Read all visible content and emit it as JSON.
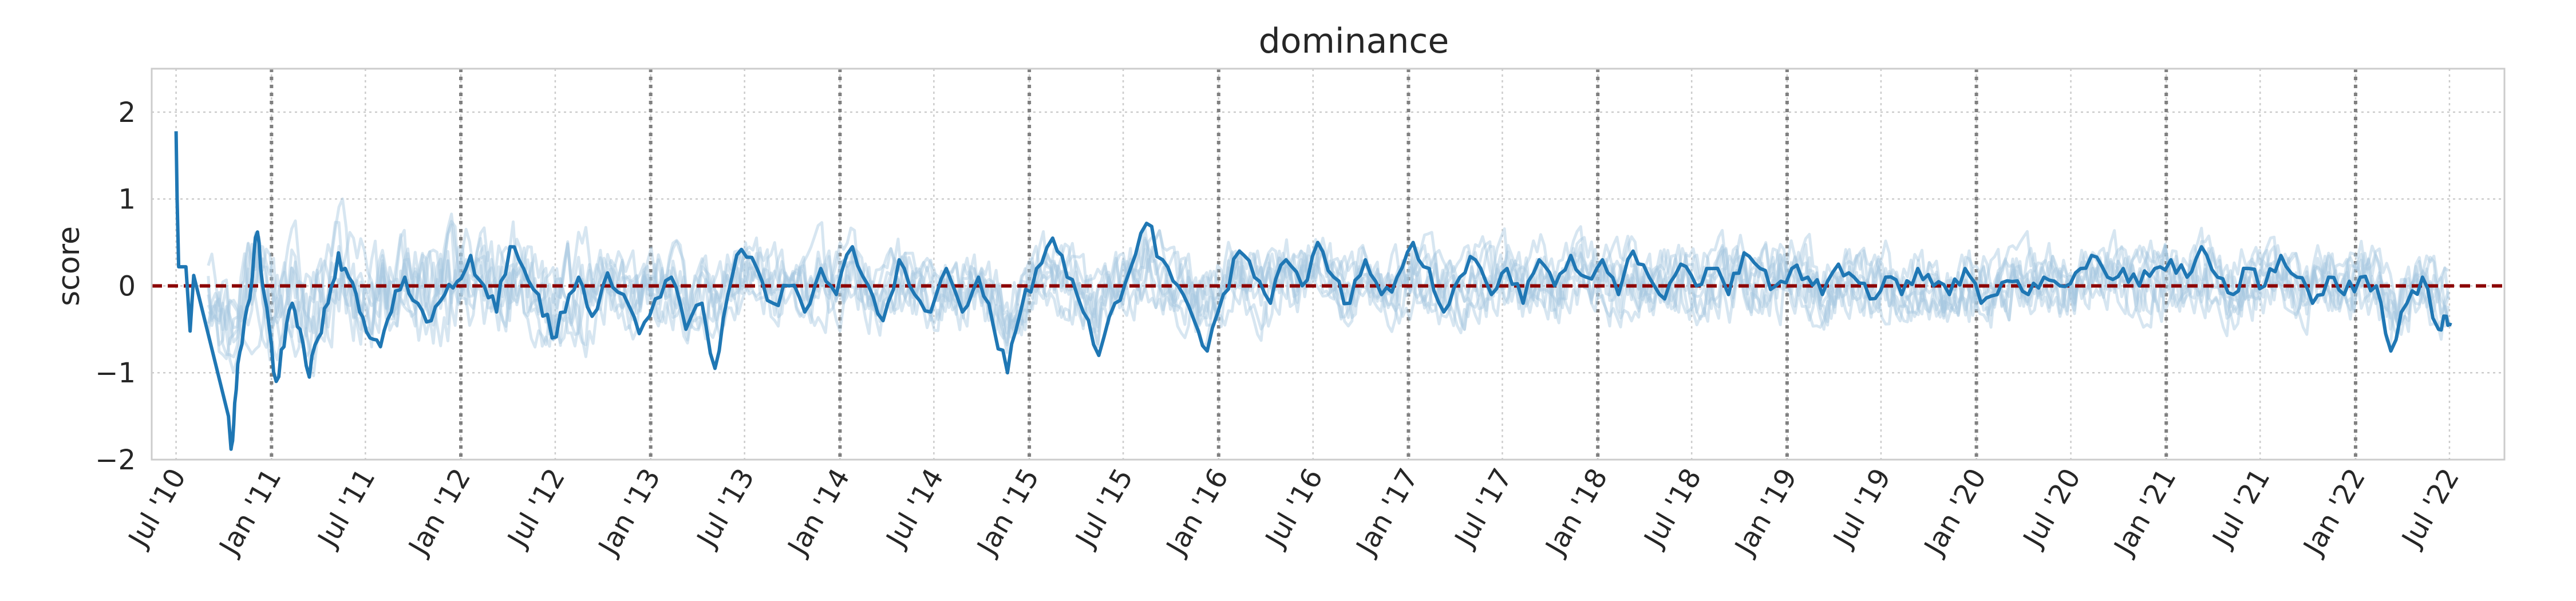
{
  "chart_data": {
    "type": "line",
    "title": "dominance",
    "xlabel": "",
    "ylabel": "score",
    "ylim": [
      -2,
      2.5
    ],
    "xlim": [
      "2010-05-15",
      "2022-10-15"
    ],
    "yticks": [
      -2,
      -1,
      0,
      1,
      2
    ],
    "ytick_labels": [
      "−2",
      "−1",
      "0",
      "1",
      "2"
    ],
    "xticks": [
      {
        "date": "2010-07-01",
        "label": "Jul '10"
      },
      {
        "date": "2011-01-01",
        "label": "Jan '11"
      },
      {
        "date": "2011-07-01",
        "label": "Jul '11"
      },
      {
        "date": "2012-01-01",
        "label": "Jan '12"
      },
      {
        "date": "2012-07-01",
        "label": "Jul '12"
      },
      {
        "date": "2013-01-01",
        "label": "Jan '13"
      },
      {
        "date": "2013-07-01",
        "label": "Jul '13"
      },
      {
        "date": "2014-01-01",
        "label": "Jan '14"
      },
      {
        "date": "2014-07-01",
        "label": "Jul '14"
      },
      {
        "date": "2015-01-01",
        "label": "Jan '15"
      },
      {
        "date": "2015-07-01",
        "label": "Jul '15"
      },
      {
        "date": "2016-01-01",
        "label": "Jan '16"
      },
      {
        "date": "2016-07-01",
        "label": "Jul '16"
      },
      {
        "date": "2017-01-01",
        "label": "Jan '17"
      },
      {
        "date": "2017-07-01",
        "label": "Jul '17"
      },
      {
        "date": "2018-01-01",
        "label": "Jan '18"
      },
      {
        "date": "2018-07-01",
        "label": "Jul '18"
      },
      {
        "date": "2019-01-01",
        "label": "Jan '19"
      },
      {
        "date": "2019-07-01",
        "label": "Jul '19"
      },
      {
        "date": "2020-01-01",
        "label": "Jan '20"
      },
      {
        "date": "2020-07-01",
        "label": "Jul '20"
      },
      {
        "date": "2021-01-01",
        "label": "Jan '21"
      },
      {
        "date": "2021-07-01",
        "label": "Jul '21"
      },
      {
        "date": "2022-01-01",
        "label": "Jan '22"
      },
      {
        "date": "2022-07-01",
        "label": "Jul '22"
      }
    ],
    "vlines": [
      "2011-01-01",
      "2012-01-01",
      "2013-01-01",
      "2014-01-01",
      "2015-01-01",
      "2016-01-01",
      "2017-01-01",
      "2018-01-01",
      "2019-01-01",
      "2020-01-01",
      "2021-01-01",
      "2022-01-01"
    ],
    "hline": 0,
    "grid": true,
    "colors": {
      "main_series": "#1f77b4",
      "background_series": "#a6c8e0",
      "zero_line": "#8b0000",
      "year_lines": "#808080",
      "grid": "#cccccc",
      "frame": "#cccccc"
    },
    "background_series_count": 8,
    "main_series": {
      "points": [
        [
          "2010-07-01",
          1.78
        ],
        [
          "2010-07-03",
          1.0
        ],
        [
          "2010-07-06",
          0.22
        ],
        [
          "2010-07-20",
          0.22
        ],
        [
          "2010-07-28",
          -0.52
        ],
        [
          "2010-08-04",
          0.12
        ],
        [
          "2010-10-10",
          -1.5
        ],
        [
          "2010-10-15",
          -1.88
        ],
        [
          "2010-10-20",
          -1.6
        ],
        [
          "2010-10-28",
          -0.9
        ],
        [
          "2010-11-10",
          -0.4
        ],
        [
          "2010-11-25",
          0.1
        ],
        [
          "2010-12-05",
          0.62
        ],
        [
          "2010-12-15",
          0.0
        ],
        [
          "2010-12-28",
          -0.5
        ],
        [
          "2011-01-10",
          -1.1
        ],
        [
          "2011-01-25",
          -0.7
        ],
        [
          "2011-02-10",
          -0.2
        ],
        [
          "2011-02-25",
          -0.5
        ],
        [
          "2011-03-15",
          -1.05
        ],
        [
          "2011-04-01",
          -0.6
        ],
        [
          "2011-04-20",
          -0.2
        ],
        [
          "2011-05-10",
          0.38
        ],
        [
          "2011-05-30",
          0.1
        ],
        [
          "2011-06-20",
          -0.3
        ],
        [
          "2011-07-10",
          -0.6
        ],
        [
          "2011-07-30",
          -0.7
        ],
        [
          "2011-08-20",
          -0.3
        ],
        [
          "2011-09-15",
          0.1
        ],
        [
          "2011-10-10",
          -0.2
        ],
        [
          "2011-11-05",
          -0.4
        ],
        [
          "2011-12-01",
          -0.1
        ],
        [
          "2011-12-25",
          0.05
        ],
        [
          "2012-01-20",
          0.35
        ],
        [
          "2012-02-15",
          0.0
        ],
        [
          "2012-03-10",
          -0.3
        ],
        [
          "2012-04-05",
          0.45
        ],
        [
          "2012-05-01",
          0.2
        ],
        [
          "2012-05-30",
          -0.1
        ],
        [
          "2012-06-25",
          -0.6
        ],
        [
          "2012-07-20",
          -0.3
        ],
        [
          "2012-08-15",
          0.1
        ],
        [
          "2012-09-10",
          -0.35
        ],
        [
          "2012-10-10",
          0.15
        ],
        [
          "2012-11-10",
          -0.1
        ],
        [
          "2012-12-10",
          -0.55
        ],
        [
          "2013-01-10",
          -0.15
        ],
        [
          "2013-02-10",
          0.1
        ],
        [
          "2013-03-10",
          -0.5
        ],
        [
          "2013-04-10",
          -0.2
        ],
        [
          "2013-05-05",
          -0.95
        ],
        [
          "2013-05-30",
          -0.1
        ],
        [
          "2013-06-25",
          0.42
        ],
        [
          "2013-07-25",
          0.2
        ],
        [
          "2013-08-25",
          -0.2
        ],
        [
          "2013-09-25",
          0.0
        ],
        [
          "2013-10-25",
          -0.3
        ],
        [
          "2013-11-25",
          0.2
        ],
        [
          "2013-12-25",
          -0.1
        ],
        [
          "2014-01-25",
          0.45
        ],
        [
          "2014-02-25",
          0.0
        ],
        [
          "2014-03-25",
          -0.4
        ],
        [
          "2014-04-25",
          0.3
        ],
        [
          "2014-05-25",
          -0.1
        ],
        [
          "2014-06-25",
          -0.3
        ],
        [
          "2014-07-25",
          0.2
        ],
        [
          "2014-08-25",
          -0.3
        ],
        [
          "2014-09-25",
          0.1
        ],
        [
          "2014-10-25",
          -0.5
        ],
        [
          "2014-11-20",
          -1.0
        ],
        [
          "2014-12-15",
          -0.3
        ],
        [
          "2015-01-15",
          0.2
        ],
        [
          "2015-02-15",
          0.55
        ],
        [
          "2015-03-15",
          0.1
        ],
        [
          "2015-04-15",
          -0.3
        ],
        [
          "2015-05-15",
          -0.8
        ],
        [
          "2015-06-15",
          -0.2
        ],
        [
          "2015-07-15",
          0.2
        ],
        [
          "2015-08-15",
          0.72
        ],
        [
          "2015-09-15",
          0.3
        ],
        [
          "2015-10-15",
          0.0
        ],
        [
          "2015-11-15",
          -0.4
        ],
        [
          "2015-12-10",
          -0.75
        ],
        [
          "2016-01-10",
          -0.1
        ],
        [
          "2016-02-10",
          0.4
        ],
        [
          "2016-03-10",
          0.1
        ],
        [
          "2016-04-10",
          -0.2
        ],
        [
          "2016-05-10",
          0.3
        ],
        [
          "2016-06-10",
          0.0
        ],
        [
          "2016-07-10",
          0.5
        ],
        [
          "2016-08-10",
          0.1
        ],
        [
          "2016-09-10",
          -0.2
        ],
        [
          "2016-10-10",
          0.3
        ],
        [
          "2016-11-10",
          -0.1
        ],
        [
          "2016-12-10",
          0.1
        ],
        [
          "2017-01-10",
          0.5
        ],
        [
          "2017-02-10",
          0.2
        ],
        [
          "2017-03-10",
          -0.3
        ],
        [
          "2017-04-10",
          0.1
        ],
        [
          "2017-05-10",
          0.3
        ],
        [
          "2017-06-10",
          -0.1
        ],
        [
          "2017-07-10",
          0.2
        ],
        [
          "2017-08-10",
          -0.2
        ],
        [
          "2017-09-10",
          0.3
        ],
        [
          "2017-10-10",
          0.0
        ],
        [
          "2017-11-10",
          0.35
        ],
        [
          "2017-12-10",
          0.1
        ],
        [
          "2018-01-10",
          0.3
        ],
        [
          "2018-02-10",
          -0.1
        ],
        [
          "2018-03-10",
          0.4
        ],
        [
          "2018-04-10",
          0.1
        ],
        [
          "2018-05-10",
          -0.15
        ],
        [
          "2018-06-10",
          0.25
        ],
        [
          "2018-07-10",
          0.0
        ],
        [
          "2018-08-10",
          0.2
        ],
        [
          "2018-09-10",
          -0.1
        ],
        [
          "2018-10-10",
          0.38
        ],
        [
          "2018-11-10",
          0.2
        ],
        [
          "2018-12-10",
          0.0
        ],
        [
          "2019-01-10",
          0.2
        ],
        [
          "2019-02-10",
          0.1
        ],
        [
          "2019-03-10",
          -0.1
        ],
        [
          "2019-04-10",
          0.25
        ],
        [
          "2019-05-10",
          0.1
        ],
        [
          "2019-06-10",
          -0.15
        ],
        [
          "2019-07-10",
          0.1
        ],
        [
          "2019-08-10",
          -0.1
        ],
        [
          "2019-09-10",
          0.2
        ],
        [
          "2019-10-10",
          0.0
        ],
        [
          "2019-11-10",
          -0.1
        ],
        [
          "2019-12-10",
          0.2
        ],
        [
          "2020-01-10",
          -0.2
        ],
        [
          "2020-02-10",
          -0.1
        ],
        [
          "2020-03-10",
          0.05
        ],
        [
          "2020-04-10",
          -0.1
        ],
        [
          "2020-05-10",
          0.1
        ],
        [
          "2020-06-10",
          0.0
        ],
        [
          "2020-07-10",
          0.15
        ],
        [
          "2020-08-10",
          0.35
        ],
        [
          "2020-09-10",
          0.1
        ],
        [
          "2020-10-10",
          0.2
        ],
        [
          "2020-11-10",
          0.0
        ],
        [
          "2020-12-10",
          0.2
        ],
        [
          "2021-01-10",
          0.3
        ],
        [
          "2021-02-10",
          0.1
        ],
        [
          "2021-03-10",
          0.45
        ],
        [
          "2021-04-10",
          0.1
        ],
        [
          "2021-05-10",
          -0.1
        ],
        [
          "2021-06-10",
          0.2
        ],
        [
          "2021-07-10",
          0.0
        ],
        [
          "2021-08-10",
          0.35
        ],
        [
          "2021-09-10",
          0.1
        ],
        [
          "2021-10-10",
          -0.2
        ],
        [
          "2021-11-10",
          0.1
        ],
        [
          "2021-12-10",
          -0.1
        ],
        [
          "2022-01-10",
          0.1
        ],
        [
          "2022-02-10",
          0.0
        ],
        [
          "2022-03-10",
          -0.75
        ],
        [
          "2022-04-10",
          -0.2
        ],
        [
          "2022-05-10",
          0.1
        ],
        [
          "2022-06-10",
          -0.5
        ],
        [
          "2022-06-25",
          -0.35
        ],
        [
          "2022-07-05",
          -0.45
        ]
      ]
    }
  }
}
